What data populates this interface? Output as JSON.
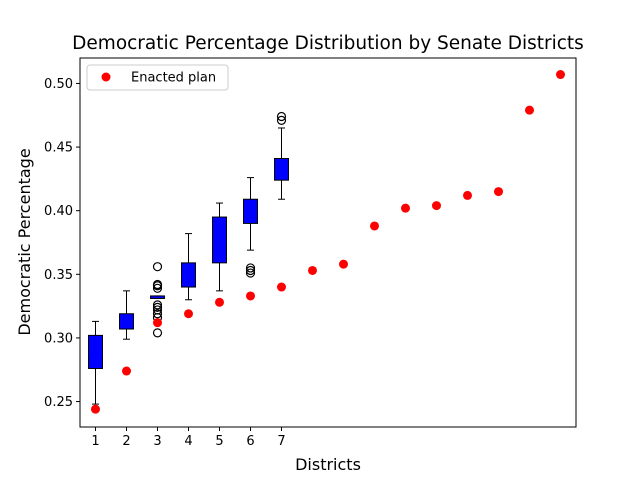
{
  "chart_data": {
    "type": "box-scatter",
    "title": "Democratic Percentage Distribution by Senate Districts",
    "xlabel": "Districts",
    "ylabel": "Democratic Percentage",
    "xlim": [
      0.5,
      16.5
    ],
    "ylim": [
      0.23,
      0.52
    ],
    "x_ticks": [
      "1",
      "2",
      "3",
      "4",
      "5",
      "6",
      "7"
    ],
    "y_ticks": [
      "0.25",
      "0.30",
      "0.35",
      "0.40",
      "0.45",
      "0.50"
    ],
    "grid": false,
    "legend": {
      "location": "top-left",
      "entries": [
        "Enacted plan"
      ]
    },
    "boxes": [
      {
        "x": 1,
        "whisker_low": 0.248,
        "q1": 0.276,
        "median": 0.288,
        "q3": 0.302,
        "whisker_high": 0.313,
        "outliers": []
      },
      {
        "x": 2,
        "whisker_low": 0.299,
        "q1": 0.307,
        "median": 0.312,
        "q3": 0.319,
        "whisker_high": 0.337,
        "outliers": []
      },
      {
        "x": 3,
        "whisker_low": 0.331,
        "q1": 0.331,
        "median": 0.332,
        "q3": 0.333,
        "whisker_high": 0.333,
        "outliers": [
          0.304,
          0.316,
          0.319,
          0.322,
          0.324,
          0.326,
          0.339,
          0.341,
          0.342,
          0.356
        ]
      },
      {
        "x": 4,
        "whisker_low": 0.33,
        "q1": 0.34,
        "median": 0.349,
        "q3": 0.359,
        "whisker_high": 0.382,
        "outliers": []
      },
      {
        "x": 5,
        "whisker_low": 0.337,
        "q1": 0.359,
        "median": 0.376,
        "q3": 0.395,
        "whisker_high": 0.406,
        "outliers": []
      },
      {
        "x": 6,
        "whisker_low": 0.369,
        "q1": 0.39,
        "median": 0.398,
        "q3": 0.409,
        "whisker_high": 0.426,
        "outliers": [
          0.351,
          0.353,
          0.355
        ]
      },
      {
        "x": 7,
        "whisker_low": 0.409,
        "q1": 0.424,
        "median": 0.431,
        "q3": 0.441,
        "whisker_high": 0.465,
        "outliers": [
          0.471,
          0.474
        ]
      }
    ],
    "series": [
      {
        "name": "Enacted plan",
        "color": "#ff0000",
        "x": [
          1,
          2,
          3,
          4,
          5,
          6,
          7,
          8,
          9,
          10,
          11,
          12,
          13,
          14,
          15,
          16
        ],
        "values": [
          0.244,
          0.274,
          0.312,
          0.319,
          0.328,
          0.333,
          0.34,
          0.353,
          0.358,
          0.388,
          0.402,
          0.404,
          0.412,
          0.415,
          0.479,
          0.507
        ]
      }
    ],
    "box_color": "#0000ff"
  }
}
